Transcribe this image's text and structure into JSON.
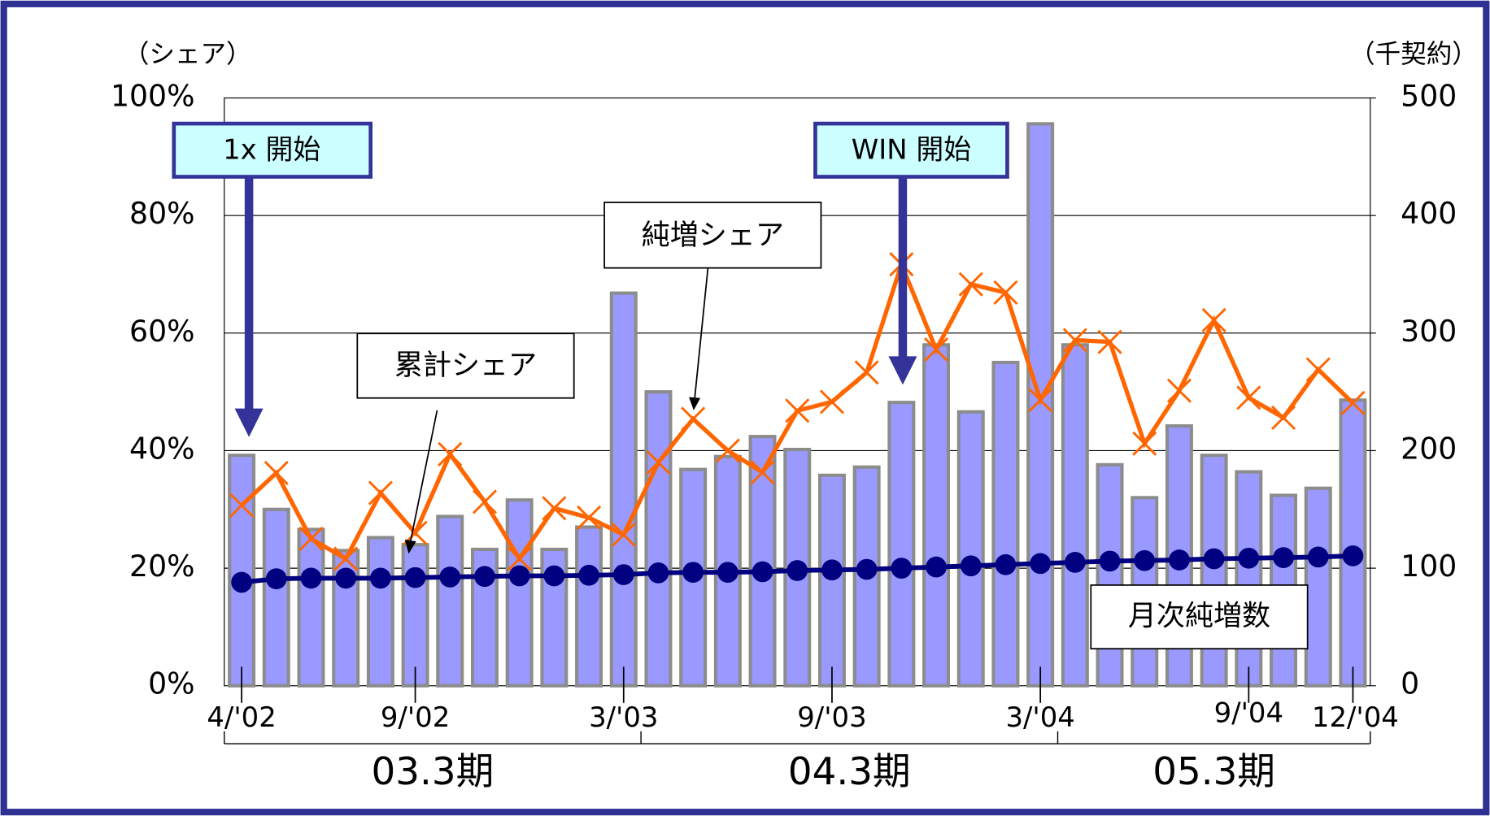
{
  "chart_data": {
    "type": "bar_line",
    "y_label": "（シェア）",
    "y2_label": "（千契約）",
    "categories": [
      "4/'02",
      null,
      null,
      null,
      null,
      "9/'02",
      null,
      null,
      null,
      null,
      null,
      "3/'03",
      null,
      null,
      null,
      null,
      null,
      "9/'03",
      null,
      null,
      null,
      null,
      null,
      "3/'04",
      null,
      null,
      null,
      null,
      null,
      "9/'04",
      null,
      null,
      "12/'04"
    ],
    "series": [
      {
        "name": "月次純増数",
        "type": "bar",
        "axis": "y2",
        "color": "#9999ff",
        "values": [
          196,
          150,
          133,
          115,
          126,
          120,
          144,
          116,
          158,
          116,
          135,
          334,
          250,
          184,
          195,
          212,
          201,
          179,
          186,
          241,
          290,
          233,
          275,
          478,
          290,
          188,
          160,
          221,
          196,
          182,
          162,
          168,
          243
        ]
      },
      {
        "name": "純増シェア",
        "type": "line",
        "marker": "x",
        "color": "#ff6600",
        "values": [
          30.7,
          36.2,
          25,
          21.6,
          32.8,
          26,
          39.4,
          31.3,
          21.6,
          30.2,
          28.6,
          25.7,
          38,
          45.4,
          40,
          36.3,
          46.8,
          48.3,
          53.3,
          71.7,
          57.2,
          68.3,
          66.9,
          48.6,
          58.8,
          58.5,
          41.2,
          50.2,
          62.2,
          49,
          45.6,
          53.8,
          48.1
        ]
      },
      {
        "name": "累計シェア",
        "type": "line",
        "marker": "circle",
        "color": "#000080",
        "values": [
          17.6,
          18.2,
          18.3,
          18.3,
          18.3,
          18.4,
          18.5,
          18.6,
          18.7,
          18.7,
          18.8,
          18.9,
          19.2,
          19.3,
          19.3,
          19.4,
          19.6,
          19.7,
          19.8,
          20,
          20.2,
          20.4,
          20.6,
          20.8,
          21,
          21.2,
          21.3,
          21.4,
          21.6,
          21.7,
          21.8,
          21.9,
          22.1
        ]
      }
    ],
    "ylim": [
      0,
      100
    ],
    "yticks": [
      {
        "value": 0,
        "label": "0%"
      },
      {
        "value": 20,
        "label": "20%"
      },
      {
        "value": 40,
        "label": "40%"
      },
      {
        "value": 60,
        "label": "60%"
      },
      {
        "value": 80,
        "label": "80%"
      },
      {
        "value": 100,
        "label": "100%"
      }
    ],
    "y2lim": [
      0,
      500
    ],
    "y2ticks": [
      0,
      100,
      200,
      300,
      400,
      500
    ],
    "grid": true,
    "periods": [
      "03.3期",
      "04.3期",
      "05.3期"
    ],
    "annotations": [
      "1x 開始",
      "WIN 開始"
    ]
  }
}
